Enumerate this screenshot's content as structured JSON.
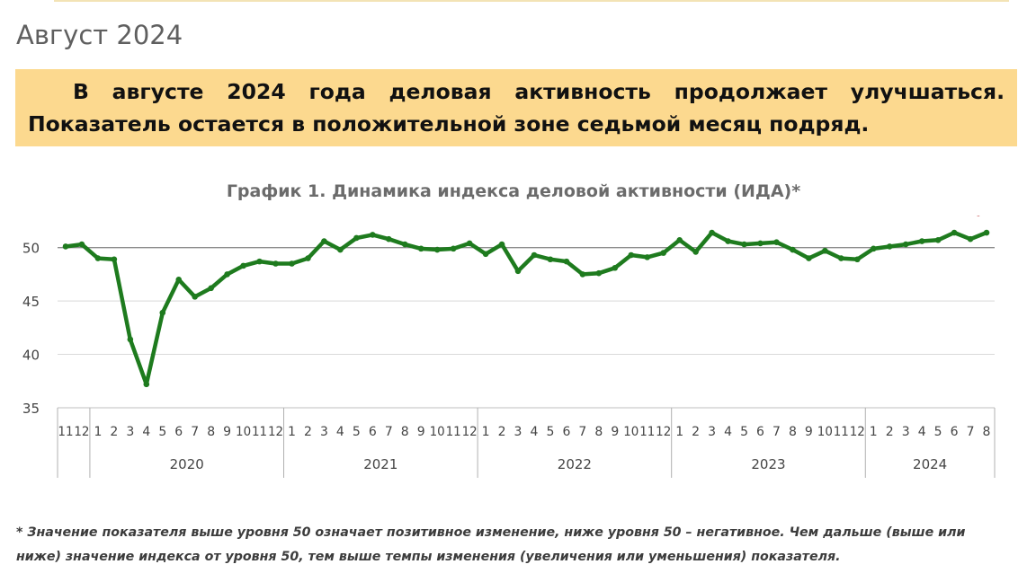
{
  "header": {
    "month_title": "Август 2024",
    "banner_line1": "В августе 2024 года деловая активность продолжает улучшаться.",
    "banner_line2": "Показатель остается в положительной зоне седьмой месяц подряд."
  },
  "footnote": "* Значение показателя выше уровня 50 означает позитивное изменение, ниже уровня 50 – негативное. Чем дальше (выше или ниже) значение индекса от уровня 50, тем выше темпы изменения (увеличения или уменьшения) показателя.",
  "colors": {
    "line": "#1e7b1e",
    "banner_bg": "#fcd98f",
    "last_value_label": "#b01c1c"
  },
  "chart_data": {
    "type": "line",
    "title": "График 1. Динамика индекса деловой активности (ИДА)*",
    "xlabel": "",
    "ylabel": "",
    "ylim": [
      35,
      53
    ],
    "yticks": [
      35,
      40,
      45,
      50
    ],
    "reference_line": 50,
    "grid": true,
    "month_labels": [
      "11",
      "12",
      "1",
      "2",
      "3",
      "4",
      "5",
      "6",
      "7",
      "8",
      "9",
      "10",
      "11",
      "12",
      "1",
      "2",
      "3",
      "4",
      "5",
      "6",
      "7",
      "8",
      "9",
      "10",
      "11",
      "12",
      "1",
      "2",
      "3",
      "4",
      "5",
      "6",
      "7",
      "8",
      "9",
      "10",
      "11",
      "12",
      "1",
      "2",
      "3",
      "4",
      "5",
      "6",
      "7",
      "8",
      "9",
      "10",
      "11",
      "12",
      "1",
      "2",
      "3",
      "4",
      "5",
      "6",
      "7",
      "8"
    ],
    "years": [
      {
        "label": "2020",
        "start": 2,
        "count": 12
      },
      {
        "label": "2021",
        "start": 14,
        "count": 12
      },
      {
        "label": "2022",
        "start": 26,
        "count": 12
      },
      {
        "label": "2023",
        "start": 38,
        "count": 12
      },
      {
        "label": "2024",
        "start": 50,
        "count": 8
      }
    ],
    "series": [
      {
        "values": [
          50.1,
          50.3,
          49.0,
          48.9,
          41.4,
          37.2,
          43.9,
          47.0,
          45.4,
          46.2,
          47.5,
          48.3,
          48.7,
          48.5,
          48.5,
          49.0,
          50.6,
          49.8,
          50.9,
          51.2,
          50.8,
          50.3,
          49.9,
          49.8,
          49.9,
          50.4,
          49.4,
          50.3,
          47.8,
          49.3,
          48.9,
          48.7,
          47.5,
          47.6,
          48.1,
          49.3,
          49.1,
          49.5,
          50.7,
          49.6,
          51.4,
          50.6,
          50.3,
          50.4,
          50.5,
          49.8,
          49.0,
          49.7,
          49.0,
          48.9,
          49.9,
          50.1,
          50.3,
          50.6,
          50.7,
          51.4,
          50.8,
          51.4
        ]
      }
    ],
    "last_value_label": "51,4"
  }
}
